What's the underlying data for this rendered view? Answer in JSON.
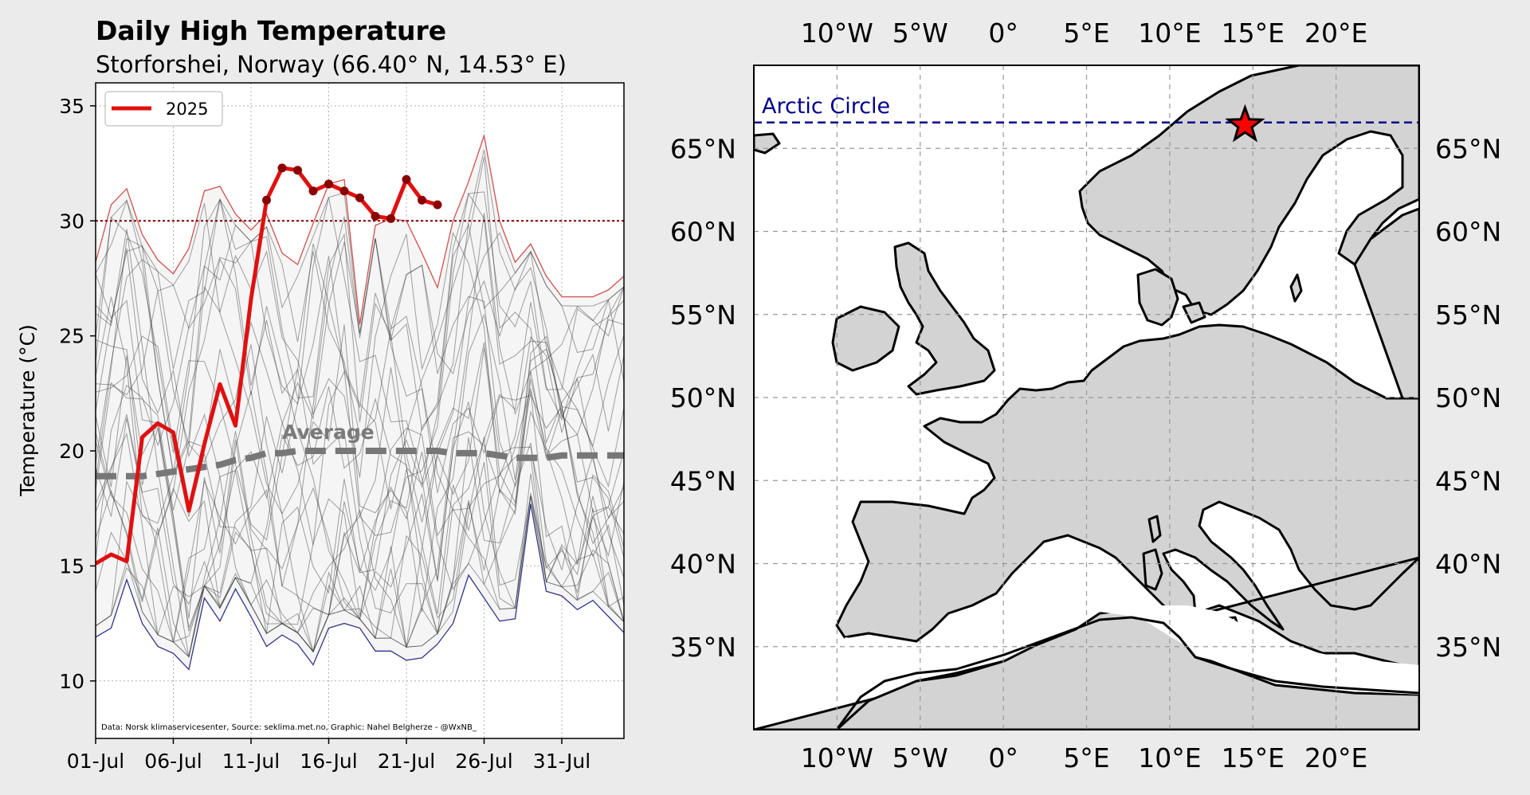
{
  "chart_data": [
    {
      "type": "line",
      "title": "Daily High Temperature",
      "subtitle": "Storforshei, Norway (66.40° N, 14.53° E)",
      "xlabel": "",
      "ylabel": "Temperature (°C)",
      "xlim": [
        "2025-07-01",
        "2025-08-04"
      ],
      "ylim": [
        7.5,
        36
      ],
      "x_ticks": [
        "01-Jul",
        "06-Jul",
        "11-Jul",
        "16-Jul",
        "21-Jul",
        "26-Jul",
        "31-Jul"
      ],
      "y_ticks": [
        10,
        15,
        20,
        25,
        30,
        35
      ],
      "grid": true,
      "legend": {
        "position": "top-left",
        "entries": [
          "2025"
        ]
      },
      "threshold": 30,
      "average_label": "Average",
      "credit": "Data: Norsk klimaservicesenter, Source: seklima.met.no, Graphic: Nahel Belgherze - @WxNB_",
      "colors": {
        "current": "#e01010",
        "max": "#d05050",
        "min": "#33338a",
        "average": "#777777",
        "historical": "#333333",
        "threshold": "#7a0000"
      },
      "series": [
        {
          "name": "2025",
          "x": [
            "2025-07-01",
            "2025-07-02",
            "2025-07-03",
            "2025-07-04",
            "2025-07-05",
            "2025-07-06",
            "2025-07-07",
            "2025-07-08",
            "2025-07-09",
            "2025-07-10",
            "2025-07-11",
            "2025-07-12",
            "2025-07-13",
            "2025-07-14",
            "2025-07-15",
            "2025-07-16",
            "2025-07-17",
            "2025-07-18",
            "2025-07-19",
            "2025-07-20",
            "2025-07-21",
            "2025-07-22",
            "2025-07-23"
          ],
          "y": [
            15.1,
            15.5,
            15.2,
            20.6,
            21.2,
            20.8,
            17.4,
            20.3,
            22.9,
            21.1,
            26.6,
            30.9,
            32.3,
            32.2,
            31.3,
            31.6,
            31.3,
            31.0,
            30.2,
            30.1,
            31.8,
            30.9,
            30.7
          ]
        },
        {
          "x": [
            "2025-07-01",
            "2025-07-02",
            "2025-07-03",
            "2025-07-04",
            "2025-07-05",
            "2025-07-06",
            "2025-07-07",
            "2025-07-08",
            "2025-07-09",
            "2025-07-10",
            "2025-07-11",
            "2025-07-12",
            "2025-07-13",
            "2025-07-14",
            "2025-07-15",
            "2025-07-16",
            "2025-07-17",
            "2025-07-18",
            "2025-07-19",
            "2025-07-20",
            "2025-07-21",
            "2025-07-22",
            "2025-07-23",
            "2025-07-24",
            "2025-07-25",
            "2025-07-26",
            "2025-07-27",
            "2025-07-28",
            "2025-07-29",
            "2025-07-30",
            "2025-07-31",
            "2025-08-01",
            "2025-08-02",
            "2025-08-03",
            "2025-08-04"
          ],
          "y": [
            28.2,
            30.7,
            31.4,
            29.4,
            28.3,
            27.7,
            28.8,
            31.3,
            31.5,
            30.3,
            29.6,
            30.3,
            28.6,
            28.1,
            29.9,
            31.6,
            31.8,
            25.5,
            29.8,
            30.1,
            30.0,
            28.6,
            27.1,
            30.0,
            31.7,
            33.7,
            30.0,
            28.2,
            29.0,
            27.6,
            26.7,
            26.7,
            26.7,
            27.0,
            27.6
          ]
        },
        {
          "x": [
            "2025-07-01",
            "2025-07-02",
            "2025-07-03",
            "2025-07-04",
            "2025-07-05",
            "2025-07-06",
            "2025-07-07",
            "2025-07-08",
            "2025-07-09",
            "2025-07-10",
            "2025-07-11",
            "2025-07-12",
            "2025-07-13",
            "2025-07-14",
            "2025-07-15",
            "2025-07-16",
            "2025-07-17",
            "2025-07-18",
            "2025-07-19",
            "2025-07-20",
            "2025-07-21",
            "2025-07-22",
            "2025-07-23",
            "2025-07-24",
            "2025-07-25",
            "2025-07-26",
            "2025-07-27",
            "2025-07-28",
            "2025-07-29",
            "2025-07-30",
            "2025-07-31",
            "2025-08-01",
            "2025-08-02",
            "2025-08-03",
            "2025-08-04"
          ],
          "y": [
            11.9,
            12.3,
            14.4,
            12.5,
            11.5,
            11.2,
            10.5,
            13.6,
            12.6,
            14.0,
            12.8,
            11.5,
            12.0,
            11.6,
            10.7,
            12.3,
            12.5,
            12.3,
            11.3,
            11.3,
            10.9,
            11.0,
            11.6,
            12.5,
            14.6,
            13.6,
            12.6,
            12.7,
            17.7,
            13.9,
            13.7,
            13.1,
            13.5,
            12.8,
            12.1
          ]
        },
        {
          "x": [
            "2025-07-01",
            "2025-07-02",
            "2025-07-03",
            "2025-07-04",
            "2025-07-05",
            "2025-07-06",
            "2025-07-07",
            "2025-07-08",
            "2025-07-09",
            "2025-07-10",
            "2025-07-11",
            "2025-07-12",
            "2025-07-13",
            "2025-07-14",
            "2025-07-15",
            "2025-07-16",
            "2025-07-17",
            "2025-07-18",
            "2025-07-19",
            "2025-07-20",
            "2025-07-21",
            "2025-07-22",
            "2025-07-23",
            "2025-07-24",
            "2025-07-25",
            "2025-07-26",
            "2025-07-27",
            "2025-07-28",
            "2025-07-29",
            "2025-07-30",
            "2025-07-31",
            "2025-08-01",
            "2025-08-02",
            "2025-08-03",
            "2025-08-04"
          ],
          "y": [
            18.9,
            18.9,
            18.9,
            18.9,
            19.0,
            19.1,
            19.2,
            19.3,
            19.4,
            19.6,
            19.7,
            19.9,
            19.9,
            20.0,
            20.0,
            20.0,
            20.0,
            20.0,
            20.0,
            20.0,
            20.0,
            20.0,
            20.0,
            19.9,
            19.9,
            19.9,
            19.8,
            19.7,
            19.7,
            19.7,
            19.8,
            19.8,
            19.8,
            19.8,
            19.8
          ]
        }
      ]
    },
    {
      "type": "map",
      "lon_ticks": [
        "10°W",
        "5°W",
        "0°",
        "5°E",
        "10°E",
        "15°E",
        "20°E"
      ],
      "lat_ticks": [
        "35°N",
        "40°N",
        "45°N",
        "50°N",
        "55°N",
        "60°N",
        "65°N"
      ],
      "lon_values": [
        -10,
        -5,
        0,
        5,
        10,
        15,
        20
      ],
      "lat_values": [
        35,
        40,
        45,
        50,
        55,
        60,
        65
      ],
      "extent": {
        "lon": [
          -15,
          25
        ],
        "lat": [
          30,
          70
        ]
      },
      "arctic_circle_label": "Arctic Circle",
      "arctic_circle_lat": 66.56,
      "marker": {
        "lon": 14.53,
        "lat": 66.4,
        "symbol": "star",
        "color": "#ff0000"
      },
      "colors": {
        "land": "#d3d3d3",
        "sea": "#ffffff",
        "arctic": "#00008b"
      }
    }
  ]
}
